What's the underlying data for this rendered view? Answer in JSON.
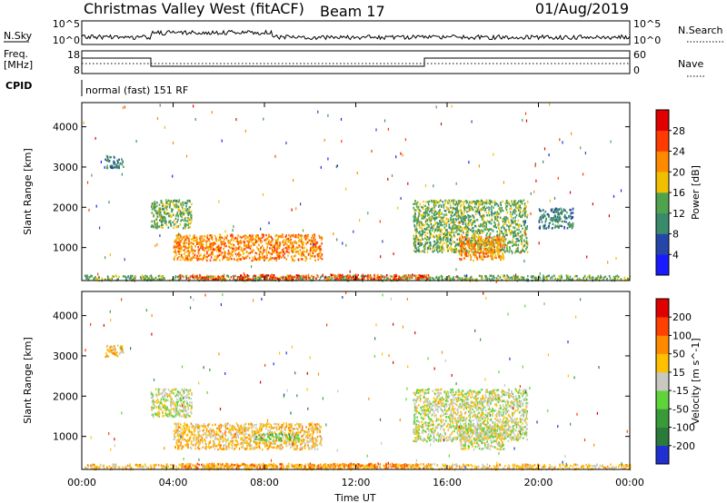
{
  "header": {
    "station": "Christmas Valley West (fitACF)",
    "beam": "Beam 17",
    "date": "01/Aug/2019"
  },
  "strip": {
    "nsky_label": "N.Sky",
    "nsearch_label": "N.Search",
    "nsky_ticks": [
      "10^5",
      "10^0"
    ],
    "nsearch_ticks": [
      "10^5",
      "10^0"
    ],
    "freq_label_1": "Freq.",
    "freq_label_2": "[MHz]",
    "freq_ticks": [
      "18",
      "8"
    ],
    "nave_label": "Nave",
    "nave_ticks": [
      "60",
      "0"
    ],
    "cpid_label": "CPID",
    "cpid_text": "normal (fast) 151 RF"
  },
  "x_axis": {
    "label": "Time UT",
    "ticks": [
      "00:00",
      "04:00",
      "08:00",
      "12:00",
      "16:00",
      "20:00",
      "00:00"
    ]
  },
  "chart_data": [
    {
      "type": "heatmap",
      "panel": "power",
      "xlabel": "Time UT",
      "ylabel": "Slant Range [km]",
      "xlim_hours": [
        0,
        24
      ],
      "ylim_km": [
        180,
        4600
      ],
      "y_ticks": [
        1000,
        2000,
        3000,
        4000
      ],
      "colorbar_label": "Power [dB]",
      "colorbar_ticks": [
        4,
        8,
        12,
        16,
        20,
        24,
        28
      ],
      "colorbar_colors": [
        "#1a1aff",
        "#2546a8",
        "#3a8a6c",
        "#4fa34f",
        "#f0c000",
        "#ff8a00",
        "#ff3b00",
        "#e00000"
      ],
      "regions": [
        {
          "t": [
            0.1,
            24
          ],
          "r": [
            200,
            330
          ],
          "level": 3
        },
        {
          "t": [
            4.2,
            15.2
          ],
          "r": [
            230,
            350
          ],
          "level": 6
        },
        {
          "t": [
            4.0,
            10.5
          ],
          "r": [
            700,
            1350
          ],
          "level": 5
        },
        {
          "t": [
            3.0,
            4.8
          ],
          "r": [
            1500,
            2200
          ],
          "level": 3
        },
        {
          "t": [
            14.5,
            19.5
          ],
          "r": [
            900,
            2200
          ],
          "level": 3
        },
        {
          "t": [
            16.5,
            18.5
          ],
          "r": [
            700,
            1300
          ],
          "level": 5
        },
        {
          "t": [
            20.0,
            21.5
          ],
          "r": [
            1500,
            2000
          ],
          "level": 2
        },
        {
          "t": [
            1.0,
            1.8
          ],
          "r": [
            3000,
            3300
          ],
          "level": 2
        }
      ]
    },
    {
      "type": "heatmap",
      "panel": "velocity",
      "xlabel": "Time UT",
      "ylabel": "Slant Range [km]",
      "xlim_hours": [
        0,
        24
      ],
      "ylim_km": [
        180,
        4600
      ],
      "y_ticks": [
        1000,
        2000,
        3000,
        4000
      ],
      "colorbar_label": "Velocity [m s^-1]",
      "colorbar_ticks": [
        200,
        100,
        50,
        15,
        -15,
        -50,
        -100,
        -200
      ],
      "colorbar_colors": [
        "#2030d0",
        "#2a7a3a",
        "#3a9a3a",
        "#5ed43a",
        "#c8c8c0",
        "#ffc000",
        "#ff8a00",
        "#ff4000",
        "#e00000"
      ],
      "regions": [
        {
          "t": [
            0.1,
            24
          ],
          "r": [
            200,
            330
          ],
          "level": 5
        },
        {
          "t": [
            4.2,
            15.2
          ],
          "r": [
            230,
            350
          ],
          "level": 6
        },
        {
          "t": [
            4.0,
            10.5
          ],
          "r": [
            700,
            1350
          ],
          "level": 5
        },
        {
          "t": [
            7.5,
            9.5
          ],
          "r": [
            900,
            1100
          ],
          "level": 3
        },
        {
          "t": [
            3.0,
            4.8
          ],
          "r": [
            1500,
            2200
          ],
          "level": 4
        },
        {
          "t": [
            14.5,
            19.5
          ],
          "r": [
            900,
            2200
          ],
          "level": 4
        },
        {
          "t": [
            16.5,
            18.5
          ],
          "r": [
            700,
            1300
          ],
          "level": 4
        },
        {
          "t": [
            1.0,
            1.8
          ],
          "r": [
            3000,
            3300
          ],
          "level": 5
        }
      ]
    }
  ]
}
